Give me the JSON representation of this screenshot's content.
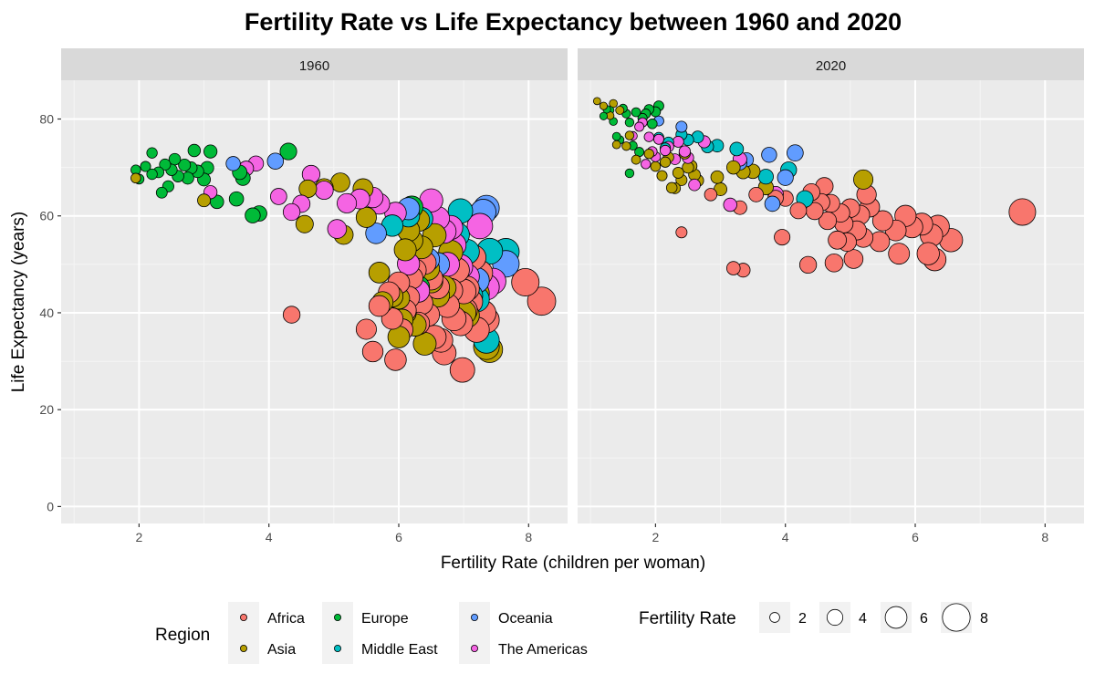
{
  "chart_data": {
    "type": "scatter",
    "title": "Fertility Rate vs Life Expectancy between 1960 and 2020",
    "xlabel": "Fertility Rate (children per woman)",
    "ylabel": "Life Expectancy (years)",
    "xlim": [
      0.8,
      8.6
    ],
    "ylim": [
      -3.5,
      88
    ],
    "x_ticks": [
      2,
      4,
      6,
      8
    ],
    "y_ticks": [
      0,
      20,
      40,
      60,
      80
    ],
    "grid": true,
    "facets": [
      "1960",
      "2020"
    ],
    "legend_position": "bottom",
    "legend": {
      "color": {
        "title": "Region",
        "items": [
          {
            "name": "Africa",
            "color": "#F8766D"
          },
          {
            "name": "Asia",
            "color": "#B79F00"
          },
          {
            "name": "Europe",
            "color": "#00BA38"
          },
          {
            "name": "Middle East",
            "color": "#00BFC4"
          },
          {
            "name": "Oceania",
            "color": "#619CFF"
          },
          {
            "name": "The Americas",
            "color": "#F564E3"
          }
        ]
      },
      "size": {
        "title": "Fertility Rate",
        "values": [
          2,
          4,
          6,
          8
        ]
      }
    },
    "series": [
      {
        "facet": "1960",
        "name": "Europe",
        "points": [
          [
            1.95,
            69.5
          ],
          [
            2.0,
            67.6
          ],
          [
            2.1,
            70.2
          ],
          [
            2.2,
            73.0
          ],
          [
            2.2,
            68.6
          ],
          [
            2.3,
            69.0
          ],
          [
            2.35,
            64.8
          ],
          [
            2.4,
            70.6
          ],
          [
            2.45,
            66.1
          ],
          [
            2.5,
            69.5
          ],
          [
            2.55,
            71.7
          ],
          [
            2.6,
            68.2
          ],
          [
            2.7,
            70.5
          ],
          [
            2.75,
            67.8
          ],
          [
            2.8,
            69.9
          ],
          [
            2.85,
            73.5
          ],
          [
            2.9,
            69.2
          ],
          [
            3.0,
            67.5
          ],
          [
            3.05,
            69.9
          ],
          [
            3.1,
            73.3
          ],
          [
            3.2,
            62.9
          ],
          [
            3.5,
            63.5
          ],
          [
            3.55,
            69.0
          ],
          [
            3.6,
            67.8
          ],
          [
            3.75,
            60.1
          ],
          [
            3.85,
            60.5
          ],
          [
            4.3,
            73.3
          ],
          [
            6.3,
            45.3
          ],
          [
            6.2,
            61.8
          ]
        ]
      },
      {
        "facet": "1960",
        "name": "Asia",
        "points": [
          [
            1.95,
            67.8
          ],
          [
            3.0,
            63.2
          ],
          [
            4.55,
            58.3
          ],
          [
            4.6,
            65.6
          ],
          [
            4.85,
            65.8
          ],
          [
            5.1,
            66.9
          ],
          [
            5.15,
            56.1
          ],
          [
            5.45,
            65.6
          ],
          [
            5.5,
            59.7
          ],
          [
            5.7,
            48.3
          ],
          [
            5.75,
            42.2
          ],
          [
            5.9,
            43.4
          ],
          [
            6.0,
            43.0
          ],
          [
            6.05,
            38.5
          ],
          [
            6.1,
            40.0
          ],
          [
            6.1,
            53.0
          ],
          [
            6.15,
            57.0
          ],
          [
            6.2,
            54.9
          ],
          [
            6.25,
            37.5
          ],
          [
            6.3,
            59.1
          ],
          [
            6.35,
            53.5
          ],
          [
            6.4,
            33.6
          ],
          [
            6.45,
            49.1
          ],
          [
            6.5,
            46.5
          ],
          [
            6.55,
            56.0
          ],
          [
            6.6,
            43.6
          ],
          [
            6.7,
            45.2
          ],
          [
            6.8,
            52.5
          ],
          [
            7.0,
            40.0
          ],
          [
            7.05,
            39.5
          ],
          [
            7.2,
            44.0
          ],
          [
            7.35,
            33.0
          ],
          [
            7.4,
            32.4
          ],
          [
            6.0,
            35.0
          ]
        ]
      },
      {
        "facet": "1960",
        "name": "Middle East",
        "points": [
          [
            5.9,
            58.0
          ],
          [
            6.15,
            60.0
          ],
          [
            6.35,
            59.4
          ],
          [
            6.9,
            56.1
          ],
          [
            6.95,
            61.0
          ],
          [
            7.05,
            52.6
          ],
          [
            7.1,
            43.5
          ],
          [
            7.2,
            42.8
          ],
          [
            7.35,
            34.3
          ],
          [
            7.4,
            52.7
          ],
          [
            7.65,
            52.6
          ]
        ]
      },
      {
        "facet": "1960",
        "name": "Oceania",
        "points": [
          [
            3.45,
            70.8
          ],
          [
            4.1,
            71.3
          ],
          [
            5.65,
            56.4
          ],
          [
            6.15,
            61.5
          ],
          [
            6.45,
            51.0
          ],
          [
            6.6,
            50.0
          ],
          [
            7.2,
            46.7
          ],
          [
            7.3,
            60.8
          ],
          [
            7.35,
            61.6
          ],
          [
            7.65,
            50.1
          ]
        ]
      },
      {
        "facet": "1960",
        "name": "The Americas",
        "points": [
          [
            3.1,
            64.9
          ],
          [
            3.65,
            69.8
          ],
          [
            3.8,
            70.8
          ],
          [
            4.15,
            64.0
          ],
          [
            4.35,
            60.8
          ],
          [
            4.5,
            62.5
          ],
          [
            4.65,
            68.6
          ],
          [
            4.85,
            65.3
          ],
          [
            5.05,
            57.3
          ],
          [
            5.2,
            62.6
          ],
          [
            5.4,
            63.5
          ],
          [
            5.6,
            63.8
          ],
          [
            5.7,
            62.5
          ],
          [
            5.95,
            60.6
          ],
          [
            6.15,
            50.1
          ],
          [
            6.3,
            44.5
          ],
          [
            6.5,
            63.2
          ],
          [
            6.6,
            59.5
          ],
          [
            6.7,
            56.8
          ],
          [
            6.75,
            50.0
          ],
          [
            6.8,
            57.6
          ],
          [
            6.85,
            54.0
          ],
          [
            6.95,
            49.5
          ],
          [
            7.05,
            47.5
          ],
          [
            7.25,
            57.9
          ],
          [
            7.35,
            45.3
          ],
          [
            7.45,
            46.5
          ]
        ]
      },
      {
        "facet": "1960",
        "name": "Africa",
        "points": [
          [
            4.35,
            39.6
          ],
          [
            5.5,
            36.6
          ],
          [
            5.6,
            32.0
          ],
          [
            5.7,
            41.4
          ],
          [
            5.85,
            44.2
          ],
          [
            5.9,
            38.8
          ],
          [
            5.95,
            30.3
          ],
          [
            6.0,
            46.2
          ],
          [
            6.05,
            36.5
          ],
          [
            6.1,
            40.5
          ],
          [
            6.15,
            43.2
          ],
          [
            6.2,
            47.2
          ],
          [
            6.25,
            48.8
          ],
          [
            6.3,
            37.8
          ],
          [
            6.35,
            42.0
          ],
          [
            6.4,
            50.3
          ],
          [
            6.45,
            39.6
          ],
          [
            6.5,
            47.1
          ],
          [
            6.55,
            35.0
          ],
          [
            6.6,
            45.3
          ],
          [
            6.65,
            34.3
          ],
          [
            6.7,
            31.7
          ],
          [
            6.75,
            41.5
          ],
          [
            6.8,
            44.6
          ],
          [
            6.85,
            38.8
          ],
          [
            6.9,
            48.8
          ],
          [
            6.95,
            37.8
          ],
          [
            6.98,
            28.2
          ],
          [
            7.0,
            44.4
          ],
          [
            7.02,
            40.5
          ],
          [
            7.05,
            45.0
          ],
          [
            7.1,
            42.3
          ],
          [
            7.15,
            51.4
          ],
          [
            7.2,
            36.5
          ],
          [
            7.25,
            48.2
          ],
          [
            7.3,
            39.9
          ],
          [
            7.35,
            38.5
          ],
          [
            7.95,
            46.3
          ],
          [
            8.2,
            42.4
          ]
        ]
      },
      {
        "facet": "2020",
        "name": "Europe",
        "points": [
          [
            1.2,
            80.6
          ],
          [
            1.25,
            82.0
          ],
          [
            1.3,
            81.8
          ],
          [
            1.35,
            79.5
          ],
          [
            1.4,
            76.4
          ],
          [
            1.45,
            75.7
          ],
          [
            1.5,
            82.2
          ],
          [
            1.55,
            81.1
          ],
          [
            1.6,
            79.3
          ],
          [
            1.65,
            74.5
          ],
          [
            1.7,
            81.4
          ],
          [
            1.75,
            73.2
          ],
          [
            1.8,
            80.2
          ],
          [
            1.85,
            81.1
          ],
          [
            1.9,
            82.0
          ],
          [
            1.95,
            79.0
          ],
          [
            2.0,
            81.5
          ],
          [
            2.05,
            82.7
          ],
          [
            1.6,
            68.8
          ]
        ]
      },
      {
        "facet": "2020",
        "name": "Asia",
        "points": [
          [
            1.1,
            83.7
          ],
          [
            1.2,
            82.7
          ],
          [
            1.3,
            80.7
          ],
          [
            1.35,
            83.2
          ],
          [
            1.4,
            74.7
          ],
          [
            1.45,
            81.8
          ],
          [
            1.55,
            74.4
          ],
          [
            1.6,
            76.6
          ],
          [
            1.7,
            71.6
          ],
          [
            1.9,
            72.8
          ],
          [
            2.0,
            70.2
          ],
          [
            2.1,
            68.3
          ],
          [
            2.15,
            71.1
          ],
          [
            2.2,
            72.1
          ],
          [
            2.25,
            65.8
          ],
          [
            2.3,
            65.7
          ],
          [
            2.35,
            68.9
          ],
          [
            2.4,
            67.4
          ],
          [
            2.45,
            72.9
          ],
          [
            2.5,
            70.0
          ],
          [
            2.55,
            70.3
          ],
          [
            2.6,
            68.5
          ],
          [
            2.65,
            67.3
          ],
          [
            2.95,
            68.0
          ],
          [
            3.0,
            65.5
          ],
          [
            3.2,
            70.0
          ],
          [
            3.35,
            69.1
          ],
          [
            3.5,
            69.2
          ],
          [
            3.7,
            65.9
          ],
          [
            5.2,
            67.5
          ]
        ]
      },
      {
        "facet": "2020",
        "name": "Middle East",
        "points": [
          [
            2.05,
            76.2
          ],
          [
            2.15,
            74.0
          ],
          [
            2.2,
            75.2
          ],
          [
            2.4,
            76.8
          ],
          [
            2.5,
            75.7
          ],
          [
            2.65,
            76.3
          ],
          [
            2.8,
            74.3
          ],
          [
            2.95,
            74.5
          ],
          [
            3.25,
            73.8
          ],
          [
            3.7,
            68.1
          ],
          [
            4.05,
            69.5
          ],
          [
            4.3,
            63.5
          ]
        ]
      },
      {
        "facet": "2020",
        "name": "Oceania",
        "points": [
          [
            2.05,
            79.6
          ],
          [
            2.4,
            78.4
          ],
          [
            3.3,
            70.9
          ],
          [
            3.4,
            71.6
          ],
          [
            3.75,
            72.6
          ],
          [
            3.8,
            62.5
          ],
          [
            4.0,
            67.9
          ],
          [
            4.15,
            73.0
          ]
        ]
      },
      {
        "facet": "2020",
        "name": "The Americas",
        "points": [
          [
            1.65,
            76.5
          ],
          [
            1.75,
            78.4
          ],
          [
            1.8,
            79.3
          ],
          [
            1.85,
            70.7
          ],
          [
            1.9,
            76.3
          ],
          [
            1.95,
            73.3
          ],
          [
            2.0,
            72.2
          ],
          [
            2.05,
            75.8
          ],
          [
            2.15,
            73.5
          ],
          [
            2.2,
            74.3
          ],
          [
            2.3,
            71.7
          ],
          [
            2.35,
            75.3
          ],
          [
            2.45,
            73.3
          ],
          [
            2.5,
            72.0
          ],
          [
            2.6,
            66.4
          ],
          [
            2.75,
            75.3
          ],
          [
            3.15,
            62.3
          ],
          [
            3.3,
            71.7
          ],
          [
            3.85,
            64.5
          ]
        ]
      },
      {
        "facet": "2020",
        "name": "Africa",
        "points": [
          [
            2.4,
            56.6
          ],
          [
            2.85,
            64.4
          ],
          [
            3.2,
            49.2
          ],
          [
            3.3,
            61.7
          ],
          [
            3.35,
            48.8
          ],
          [
            3.55,
            64.4
          ],
          [
            3.85,
            63.7
          ],
          [
            3.95,
            55.6
          ],
          [
            4.0,
            63.6
          ],
          [
            4.2,
            61.1
          ],
          [
            4.35,
            49.9
          ],
          [
            4.4,
            64.9
          ],
          [
            4.45,
            61.0
          ],
          [
            4.55,
            62.8
          ],
          [
            4.6,
            66.1
          ],
          [
            4.65,
            59.0
          ],
          [
            4.7,
            62.6
          ],
          [
            4.75,
            50.3
          ],
          [
            4.8,
            55.0
          ],
          [
            4.85,
            60.6
          ],
          [
            4.9,
            58.4
          ],
          [
            4.95,
            54.6
          ],
          [
            5.0,
            61.6
          ],
          [
            5.05,
            51.1
          ],
          [
            5.1,
            57.0
          ],
          [
            5.15,
            60.2
          ],
          [
            5.2,
            55.5
          ],
          [
            5.25,
            64.4
          ],
          [
            5.3,
            61.8
          ],
          [
            5.45,
            54.7
          ],
          [
            5.5,
            59.0
          ],
          [
            5.7,
            57.0
          ],
          [
            5.75,
            52.2
          ],
          [
            5.85,
            60.0
          ],
          [
            5.95,
            57.7
          ],
          [
            6.1,
            58.3
          ],
          [
            6.2,
            52.2
          ],
          [
            6.25,
            56.0
          ],
          [
            6.3,
            51.0
          ],
          [
            6.35,
            57.8
          ],
          [
            6.55,
            55.0
          ],
          [
            7.65,
            60.8
          ]
        ]
      }
    ]
  }
}
